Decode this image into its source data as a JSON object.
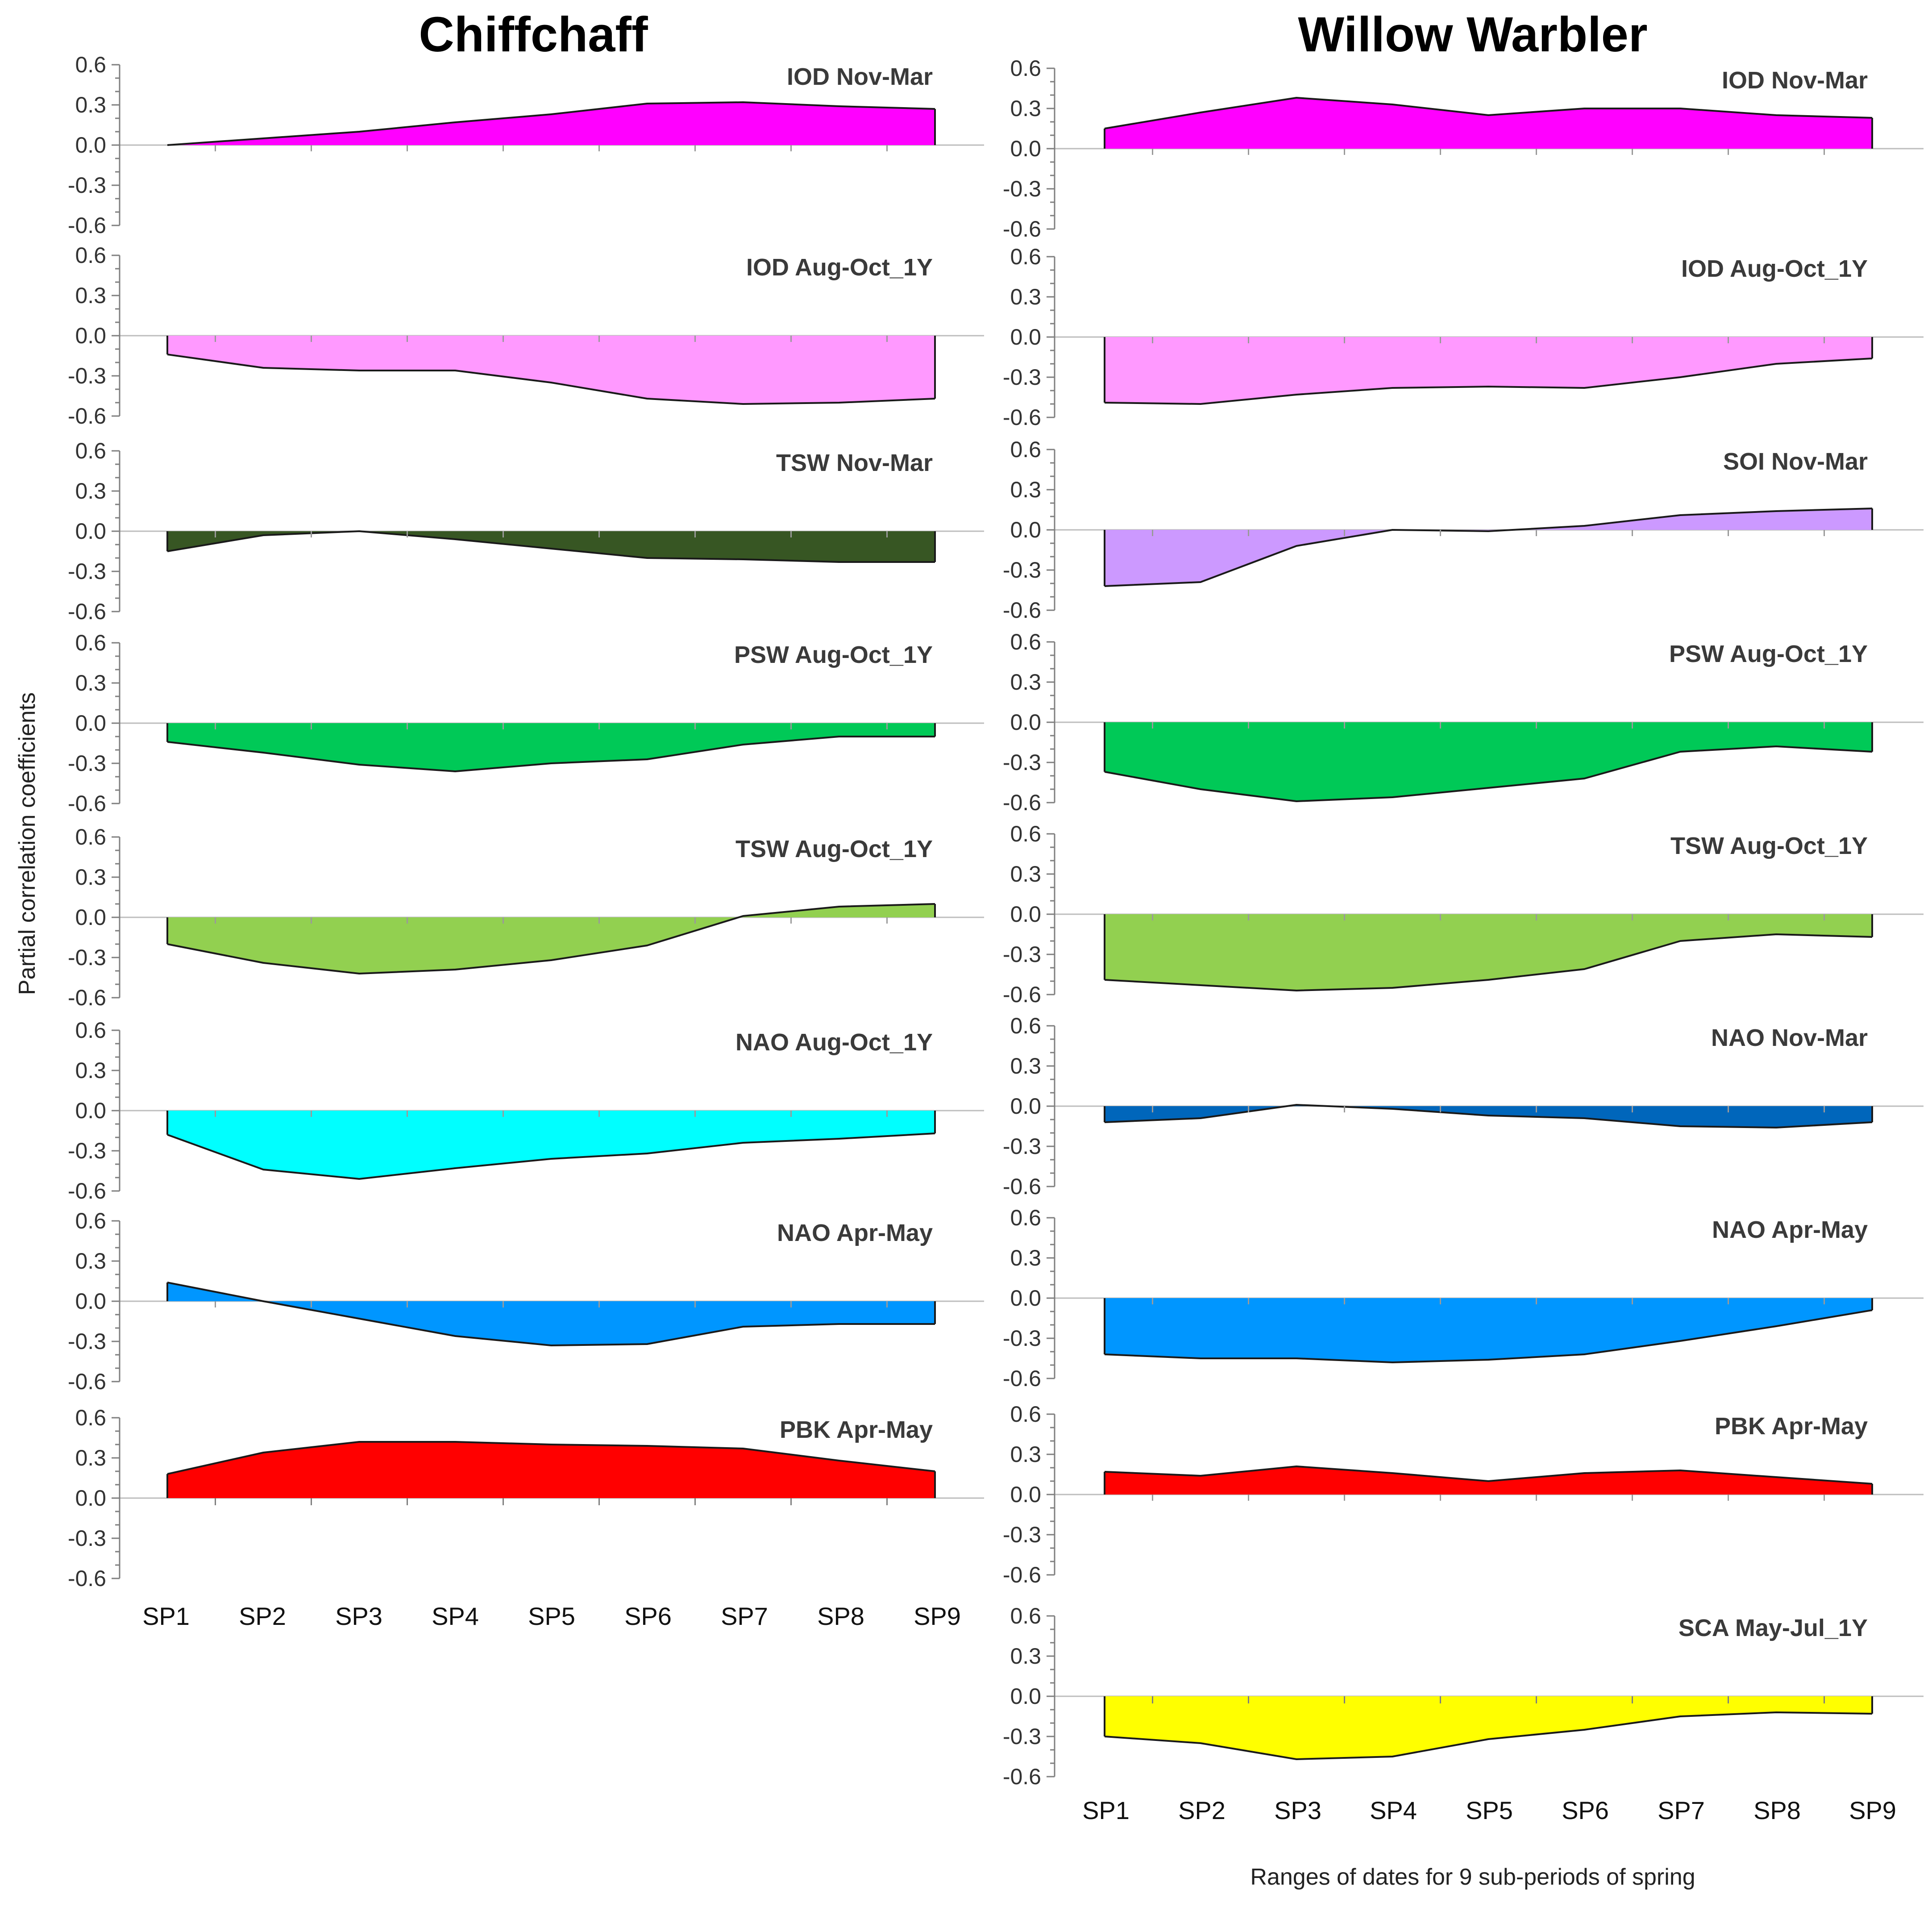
{
  "chart_data": [
    {
      "type": "area",
      "column": "Chiffchaff",
      "x": [
        "SP1",
        "SP2",
        "SP3",
        "SP4",
        "SP5",
        "SP6",
        "SP7",
        "SP8",
        "SP9"
      ],
      "yticks": [
        "0.6",
        "0.3",
        "0.0",
        "-0.3",
        "-0.6"
      ],
      "ylim": [
        -0.6,
        0.6
      ],
      "panels": [
        {
          "label": "IOD Nov-Mar",
          "color": "#ff00ff",
          "values": [
            0.0,
            0.05,
            0.1,
            0.17,
            0.23,
            0.31,
            0.32,
            0.29,
            0.27
          ]
        },
        {
          "label": "IOD Aug-Oct_1Y",
          "color": "#ff99ff",
          "values": [
            -0.14,
            -0.24,
            -0.26,
            -0.26,
            -0.35,
            -0.47,
            -0.51,
            -0.5,
            -0.47
          ]
        },
        {
          "label": "TSW Nov-Mar",
          "color": "#375623",
          "values": [
            -0.15,
            -0.03,
            0.0,
            -0.06,
            -0.13,
            -0.2,
            -0.21,
            -0.23,
            -0.23
          ]
        },
        {
          "label": "PSW Aug-Oct_1Y",
          "color": "#00c957",
          "values": [
            -0.14,
            -0.22,
            -0.31,
            -0.36,
            -0.3,
            -0.27,
            -0.16,
            -0.1,
            -0.1
          ]
        },
        {
          "label": "TSW Aug-Oct_1Y",
          "color": "#92d050",
          "values": [
            -0.2,
            -0.34,
            -0.42,
            -0.39,
            -0.32,
            -0.21,
            0.01,
            0.08,
            0.1
          ]
        },
        {
          "label": "NAO Aug-Oct_1Y",
          "color": "#00ffff",
          "values": [
            -0.18,
            -0.44,
            -0.51,
            -0.43,
            -0.36,
            -0.32,
            -0.24,
            -0.21,
            -0.17
          ]
        },
        {
          "label": "NAO Apr-May",
          "color": "#0096ff",
          "values": [
            0.14,
            0.0,
            -0.13,
            -0.26,
            -0.33,
            -0.32,
            -0.19,
            -0.17,
            -0.17
          ]
        },
        {
          "label": "PBK Apr-May",
          "color": "#ff0000",
          "values": [
            0.18,
            0.34,
            0.42,
            0.42,
            0.4,
            0.39,
            0.37,
            0.28,
            0.2
          ]
        }
      ],
      "xticks_shown_for_panel": 7
    },
    {
      "type": "area",
      "column": "Willow Warbler",
      "x": [
        "SP1",
        "SP2",
        "SP3",
        "SP4",
        "SP5",
        "SP6",
        "SP7",
        "SP8",
        "SP9"
      ],
      "yticks": [
        "0.6",
        "0.3",
        "0.0",
        "-0.3",
        "-0.6"
      ],
      "ylim": [
        -0.6,
        0.6
      ],
      "panels": [
        {
          "label": "IOD Nov-Mar",
          "color": "#ff00ff",
          "values": [
            0.15,
            0.27,
            0.38,
            0.33,
            0.25,
            0.3,
            0.3,
            0.25,
            0.23
          ]
        },
        {
          "label": "IOD Aug-Oct_1Y",
          "color": "#ff99ff",
          "values": [
            -0.49,
            -0.5,
            -0.43,
            -0.38,
            -0.37,
            -0.38,
            -0.3,
            -0.2,
            -0.16
          ]
        },
        {
          "label": "SOI Nov-Mar",
          "color": "#cc99ff",
          "values": [
            -0.42,
            -0.39,
            -0.12,
            0.0,
            -0.01,
            0.03,
            0.11,
            0.14,
            0.16
          ]
        },
        {
          "label": "PSW Aug-Oct_1Y",
          "color": "#00c957",
          "values": [
            -0.37,
            -0.5,
            -0.59,
            -0.56,
            -0.49,
            -0.42,
            -0.22,
            -0.18,
            -0.22
          ]
        },
        {
          "label": "TSW Aug-Oct_1Y",
          "color": "#92d050",
          "values": [
            -0.49,
            -0.53,
            -0.57,
            -0.55,
            -0.49,
            -0.41,
            -0.2,
            -0.15,
            -0.17
          ]
        },
        {
          "label": "NAO Nov-Mar",
          "color": "#0066bb",
          "values": [
            -0.12,
            -0.09,
            0.01,
            -0.02,
            -0.07,
            -0.09,
            -0.15,
            -0.16,
            -0.12
          ]
        },
        {
          "label": "NAO Apr-May",
          "color": "#0096ff",
          "values": [
            -0.42,
            -0.45,
            -0.45,
            -0.48,
            -0.46,
            -0.42,
            -0.32,
            -0.21,
            -0.09
          ]
        },
        {
          "label": "PBK Apr-May",
          "color": "#ff0000",
          "values": [
            0.17,
            0.14,
            0.21,
            0.16,
            0.1,
            0.16,
            0.18,
            0.13,
            0.08
          ]
        },
        {
          "label": "SCA May-Jul_1Y",
          "color": "#ffff00",
          "values": [
            -0.3,
            -0.35,
            -0.47,
            -0.45,
            -0.32,
            -0.25,
            -0.15,
            -0.12,
            -0.13
          ]
        }
      ],
      "xticks_shown_for_panel": 8
    }
  ],
  "titles": {
    "left": "Chiffchaff",
    "right": "Willow Warbler"
  },
  "ylabel": "Partial correlation coefficients",
  "xlabel": "Ranges of dates for 9 sub-periods of spring"
}
